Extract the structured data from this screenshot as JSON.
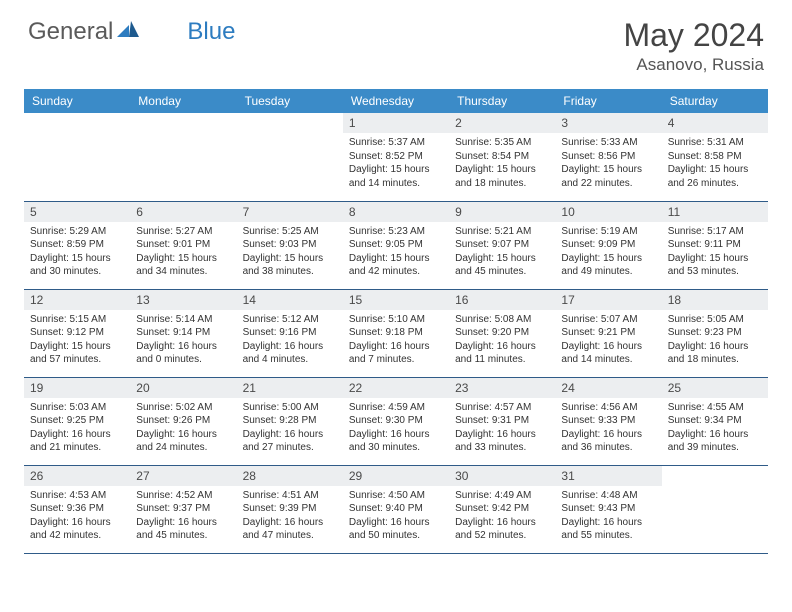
{
  "brand": {
    "part1": "General",
    "part2": "Blue"
  },
  "title": "May 2024",
  "location": "Asanovo, Russia",
  "colors": {
    "header_bg": "#3b8bc8",
    "header_text": "#ffffff",
    "daynum_bg": "#eceef0",
    "row_border": "#2f5b88",
    "brand_gray": "#5a5a5a",
    "brand_blue": "#2d7cc0"
  },
  "weekdays": [
    "Sunday",
    "Monday",
    "Tuesday",
    "Wednesday",
    "Thursday",
    "Friday",
    "Saturday"
  ],
  "weeks": [
    [
      null,
      null,
      null,
      {
        "n": "1",
        "sr": "Sunrise: 5:37 AM",
        "ss": "Sunset: 8:52 PM",
        "d1": "Daylight: 15 hours",
        "d2": "and 14 minutes."
      },
      {
        "n": "2",
        "sr": "Sunrise: 5:35 AM",
        "ss": "Sunset: 8:54 PM",
        "d1": "Daylight: 15 hours",
        "d2": "and 18 minutes."
      },
      {
        "n": "3",
        "sr": "Sunrise: 5:33 AM",
        "ss": "Sunset: 8:56 PM",
        "d1": "Daylight: 15 hours",
        "d2": "and 22 minutes."
      },
      {
        "n": "4",
        "sr": "Sunrise: 5:31 AM",
        "ss": "Sunset: 8:58 PM",
        "d1": "Daylight: 15 hours",
        "d2": "and 26 minutes."
      }
    ],
    [
      {
        "n": "5",
        "sr": "Sunrise: 5:29 AM",
        "ss": "Sunset: 8:59 PM",
        "d1": "Daylight: 15 hours",
        "d2": "and 30 minutes."
      },
      {
        "n": "6",
        "sr": "Sunrise: 5:27 AM",
        "ss": "Sunset: 9:01 PM",
        "d1": "Daylight: 15 hours",
        "d2": "and 34 minutes."
      },
      {
        "n": "7",
        "sr": "Sunrise: 5:25 AM",
        "ss": "Sunset: 9:03 PM",
        "d1": "Daylight: 15 hours",
        "d2": "and 38 minutes."
      },
      {
        "n": "8",
        "sr": "Sunrise: 5:23 AM",
        "ss": "Sunset: 9:05 PM",
        "d1": "Daylight: 15 hours",
        "d2": "and 42 minutes."
      },
      {
        "n": "9",
        "sr": "Sunrise: 5:21 AM",
        "ss": "Sunset: 9:07 PM",
        "d1": "Daylight: 15 hours",
        "d2": "and 45 minutes."
      },
      {
        "n": "10",
        "sr": "Sunrise: 5:19 AM",
        "ss": "Sunset: 9:09 PM",
        "d1": "Daylight: 15 hours",
        "d2": "and 49 minutes."
      },
      {
        "n": "11",
        "sr": "Sunrise: 5:17 AM",
        "ss": "Sunset: 9:11 PM",
        "d1": "Daylight: 15 hours",
        "d2": "and 53 minutes."
      }
    ],
    [
      {
        "n": "12",
        "sr": "Sunrise: 5:15 AM",
        "ss": "Sunset: 9:12 PM",
        "d1": "Daylight: 15 hours",
        "d2": "and 57 minutes."
      },
      {
        "n": "13",
        "sr": "Sunrise: 5:14 AM",
        "ss": "Sunset: 9:14 PM",
        "d1": "Daylight: 16 hours",
        "d2": "and 0 minutes."
      },
      {
        "n": "14",
        "sr": "Sunrise: 5:12 AM",
        "ss": "Sunset: 9:16 PM",
        "d1": "Daylight: 16 hours",
        "d2": "and 4 minutes."
      },
      {
        "n": "15",
        "sr": "Sunrise: 5:10 AM",
        "ss": "Sunset: 9:18 PM",
        "d1": "Daylight: 16 hours",
        "d2": "and 7 minutes."
      },
      {
        "n": "16",
        "sr": "Sunrise: 5:08 AM",
        "ss": "Sunset: 9:20 PM",
        "d1": "Daylight: 16 hours",
        "d2": "and 11 minutes."
      },
      {
        "n": "17",
        "sr": "Sunrise: 5:07 AM",
        "ss": "Sunset: 9:21 PM",
        "d1": "Daylight: 16 hours",
        "d2": "and 14 minutes."
      },
      {
        "n": "18",
        "sr": "Sunrise: 5:05 AM",
        "ss": "Sunset: 9:23 PM",
        "d1": "Daylight: 16 hours",
        "d2": "and 18 minutes."
      }
    ],
    [
      {
        "n": "19",
        "sr": "Sunrise: 5:03 AM",
        "ss": "Sunset: 9:25 PM",
        "d1": "Daylight: 16 hours",
        "d2": "and 21 minutes."
      },
      {
        "n": "20",
        "sr": "Sunrise: 5:02 AM",
        "ss": "Sunset: 9:26 PM",
        "d1": "Daylight: 16 hours",
        "d2": "and 24 minutes."
      },
      {
        "n": "21",
        "sr": "Sunrise: 5:00 AM",
        "ss": "Sunset: 9:28 PM",
        "d1": "Daylight: 16 hours",
        "d2": "and 27 minutes."
      },
      {
        "n": "22",
        "sr": "Sunrise: 4:59 AM",
        "ss": "Sunset: 9:30 PM",
        "d1": "Daylight: 16 hours",
        "d2": "and 30 minutes."
      },
      {
        "n": "23",
        "sr": "Sunrise: 4:57 AM",
        "ss": "Sunset: 9:31 PM",
        "d1": "Daylight: 16 hours",
        "d2": "and 33 minutes."
      },
      {
        "n": "24",
        "sr": "Sunrise: 4:56 AM",
        "ss": "Sunset: 9:33 PM",
        "d1": "Daylight: 16 hours",
        "d2": "and 36 minutes."
      },
      {
        "n": "25",
        "sr": "Sunrise: 4:55 AM",
        "ss": "Sunset: 9:34 PM",
        "d1": "Daylight: 16 hours",
        "d2": "and 39 minutes."
      }
    ],
    [
      {
        "n": "26",
        "sr": "Sunrise: 4:53 AM",
        "ss": "Sunset: 9:36 PM",
        "d1": "Daylight: 16 hours",
        "d2": "and 42 minutes."
      },
      {
        "n": "27",
        "sr": "Sunrise: 4:52 AM",
        "ss": "Sunset: 9:37 PM",
        "d1": "Daylight: 16 hours",
        "d2": "and 45 minutes."
      },
      {
        "n": "28",
        "sr": "Sunrise: 4:51 AM",
        "ss": "Sunset: 9:39 PM",
        "d1": "Daylight: 16 hours",
        "d2": "and 47 minutes."
      },
      {
        "n": "29",
        "sr": "Sunrise: 4:50 AM",
        "ss": "Sunset: 9:40 PM",
        "d1": "Daylight: 16 hours",
        "d2": "and 50 minutes."
      },
      {
        "n": "30",
        "sr": "Sunrise: 4:49 AM",
        "ss": "Sunset: 9:42 PM",
        "d1": "Daylight: 16 hours",
        "d2": "and 52 minutes."
      },
      {
        "n": "31",
        "sr": "Sunrise: 4:48 AM",
        "ss": "Sunset: 9:43 PM",
        "d1": "Daylight: 16 hours",
        "d2": "and 55 minutes."
      },
      null
    ]
  ]
}
